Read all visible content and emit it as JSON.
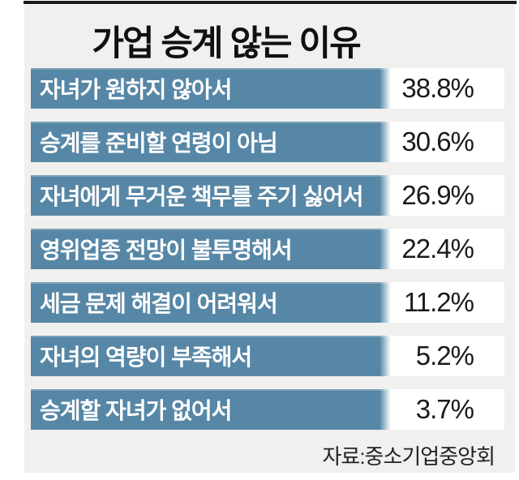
{
  "title": "가업 승계 않는 이유",
  "source": "자료:중소기업중앙회",
  "colors": {
    "bar": "#5787a6",
    "panel_background": "#f0f0ee",
    "value_cell_background": "#ffffff",
    "bar_text": "#ffffff",
    "value_text": "#1a1a1a",
    "title_text": "#111111",
    "top_rule": "#1b1b1b"
  },
  "rows": [
    {
      "label": "자녀가 원하지 않아서",
      "value_text": "38.8%"
    },
    {
      "label": "승계를 준비할 연령이 아님",
      "value_text": "30.6%"
    },
    {
      "label": "자녀에게 무거운 책무를 주기 싫어서",
      "value_text": "26.9%"
    },
    {
      "label": "영위업종 전망이 불투명해서",
      "value_text": "22.4%"
    },
    {
      "label": "세금 문제 해결이 어려워서",
      "value_text": "11.2%"
    },
    {
      "label": "자녀의 역량이 부족해서",
      "value_text": "5.2%"
    },
    {
      "label": "승계할 자녀가 없어서",
      "value_text": "3.7%"
    }
  ],
  "chart_data": {
    "type": "bar",
    "orientation": "horizontal",
    "title": "가업 승계 않는 이유",
    "categories": [
      "자녀가 원하지 않아서",
      "승계를 준비할 연령이 아님",
      "자녀에게 무거운 책무를 주기 싫어서",
      "영위업종 전망이 불투명해서",
      "세금 문제 해결이 어려워서",
      "자녀의 역량이 부족해서",
      "승계할 자녀가 없어서"
    ],
    "values": [
      38.8,
      30.6,
      26.9,
      22.4,
      11.2,
      5.2,
      3.7
    ],
    "unit": "%",
    "value_labels": [
      "38.8%",
      "30.6%",
      "26.9%",
      "22.4%",
      "11.2%",
      "5.2%",
      "3.7%"
    ],
    "xlabel": "",
    "ylabel": "",
    "legend": null,
    "grid": false,
    "source": "자료:중소기업중앙회",
    "layout_note": "table-style infographic: all label bars drawn equal width with right-edge fade; percentage shown in white cell at right"
  }
}
